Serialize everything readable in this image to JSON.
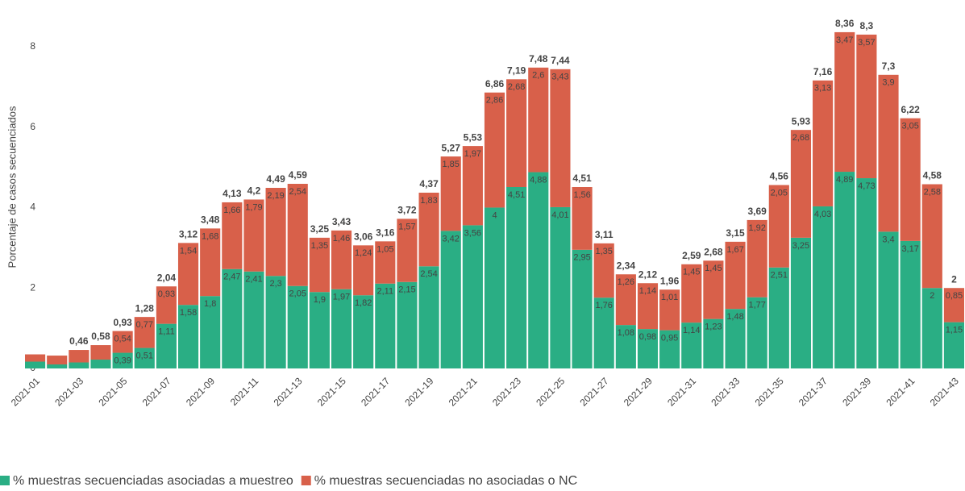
{
  "chart_data": {
    "type": "stacked_bar",
    "y_label": "Porcentaje de casos secuenciados",
    "categories": [
      "2021-01",
      null,
      "2021-03",
      null,
      "2021-05",
      null,
      "2021-07",
      null,
      "2021-09",
      null,
      "2021-11",
      null,
      "2021-13",
      null,
      "2021-15",
      null,
      "2021-17",
      null,
      "2021-19",
      null,
      "2021-21",
      null,
      "2021-23",
      null,
      "2021-25",
      null,
      "2021-27",
      null,
      "2021-29",
      null,
      "2021-31",
      null,
      "2021-33",
      null,
      "2021-35",
      null,
      "2021-37",
      null,
      "2021-39",
      null,
      "2021-41",
      null,
      "2021-43"
    ],
    "series": [
      {
        "name": "% muestras secuenciadas asociadas a muestreo",
        "color": "#2aae84",
        "values": [
          0.17,
          0.1,
          0.15,
          0.22,
          0.39,
          0.51,
          1.11,
          1.58,
          1.8,
          2.47,
          2.41,
          2.3,
          2.05,
          1.9,
          1.97,
          1.82,
          2.11,
          2.15,
          2.54,
          3.42,
          3.56,
          4,
          4.51,
          4.88,
          4.01,
          2.95,
          1.76,
          1.08,
          0.98,
          0.95,
          1.14,
          1.23,
          1.48,
          1.77,
          2.51,
          3.25,
          4.03,
          4.89,
          4.73,
          3.4,
          3.17,
          2,
          1.15
        ],
        "value_labels": [
          null,
          null,
          null,
          null,
          "0,39",
          "0,51",
          "1,11",
          "1,58",
          "1,8",
          "2,47",
          "2,41",
          "2,3",
          "2,05",
          "1,9",
          "1,97",
          "1,82",
          "2,11",
          "2,15",
          "2,54",
          "3,42",
          "3,56",
          "4",
          "4,51",
          "4,88",
          "4,01",
          "2,95",
          "1,76",
          "1,08",
          "0,98",
          "0,95",
          "1,14",
          "1,23",
          "1,48",
          "1,77",
          "2,51",
          "3,25",
          "4,03",
          "4,89",
          "4,73",
          "3,4",
          "3,17",
          "2",
          "1,15"
        ]
      },
      {
        "name": "% muestras secuenciadas no asociadas o NC",
        "color": "#d8604a",
        "values": [
          0.18,
          0.22,
          0.31,
          0.36,
          0.54,
          0.77,
          0.93,
          1.54,
          1.68,
          1.66,
          1.79,
          2.19,
          2.54,
          1.35,
          1.46,
          1.24,
          1.05,
          1.57,
          1.83,
          1.85,
          1.97,
          2.86,
          2.68,
          2.6,
          3.43,
          1.56,
          1.35,
          1.26,
          1.14,
          1.01,
          1.45,
          1.45,
          1.67,
          1.92,
          2.05,
          2.68,
          3.13,
          3.47,
          3.57,
          3.9,
          3.05,
          2.58,
          0.85
        ],
        "value_labels": [
          null,
          null,
          null,
          null,
          "0,54",
          "0,77",
          "0,93",
          "1,54",
          "1,68",
          "1,66",
          "1,79",
          "2,19",
          "2,54",
          "1,35",
          "1,46",
          "1,24",
          "1,05",
          "1,57",
          "1,83",
          "1,85",
          "1,97",
          "2,86",
          "2,68",
          "2,6",
          "3,43",
          "1,56",
          "1,35",
          "1,26",
          "1,14",
          "1,01",
          "1,45",
          "1,45",
          "1,67",
          "1,92",
          "2,05",
          "2,68",
          "3,13",
          "3,47",
          "3,57",
          "3,9",
          "3,05",
          "2,58",
          "0,85"
        ]
      }
    ],
    "totals": {
      "values": [
        null,
        null,
        0.46,
        0.58,
        0.93,
        1.28,
        2.04,
        3.12,
        3.48,
        4.13,
        4.2,
        4.49,
        4.59,
        3.25,
        3.43,
        3.06,
        3.16,
        3.72,
        4.37,
        5.27,
        5.53,
        6.86,
        7.19,
        7.48,
        7.44,
        4.51,
        3.11,
        2.34,
        2.12,
        1.96,
        2.59,
        2.68,
        3.15,
        3.69,
        4.56,
        5.93,
        7.16,
        8.36,
        8.3,
        7.3,
        6.22,
        4.58,
        2
      ],
      "value_labels": [
        null,
        null,
        "0,46",
        "0,58",
        "0,93",
        "1,28",
        "2,04",
        "3,12",
        "3,48",
        "4,13",
        "4,2",
        "4,49",
        "4,59",
        "3,25",
        "3,43",
        "3,06",
        "3,16",
        "3,72",
        "4,37",
        "5,27",
        "5,53",
        "6,86",
        "7,19",
        "7,48",
        "7,44",
        "4,51",
        "3,11",
        "2,34",
        "2,12",
        "1,96",
        "2,59",
        "2,68",
        "3,15",
        "3,69",
        "4,56",
        "5,93",
        "7,16",
        "8,36",
        "8,3",
        "7,3",
        "6,22",
        "4,58",
        "2"
      ]
    },
    "ylim": [
      0,
      9
    ],
    "yticks": [
      0,
      2,
      4,
      6,
      8
    ],
    "legend": "bottom-left"
  }
}
